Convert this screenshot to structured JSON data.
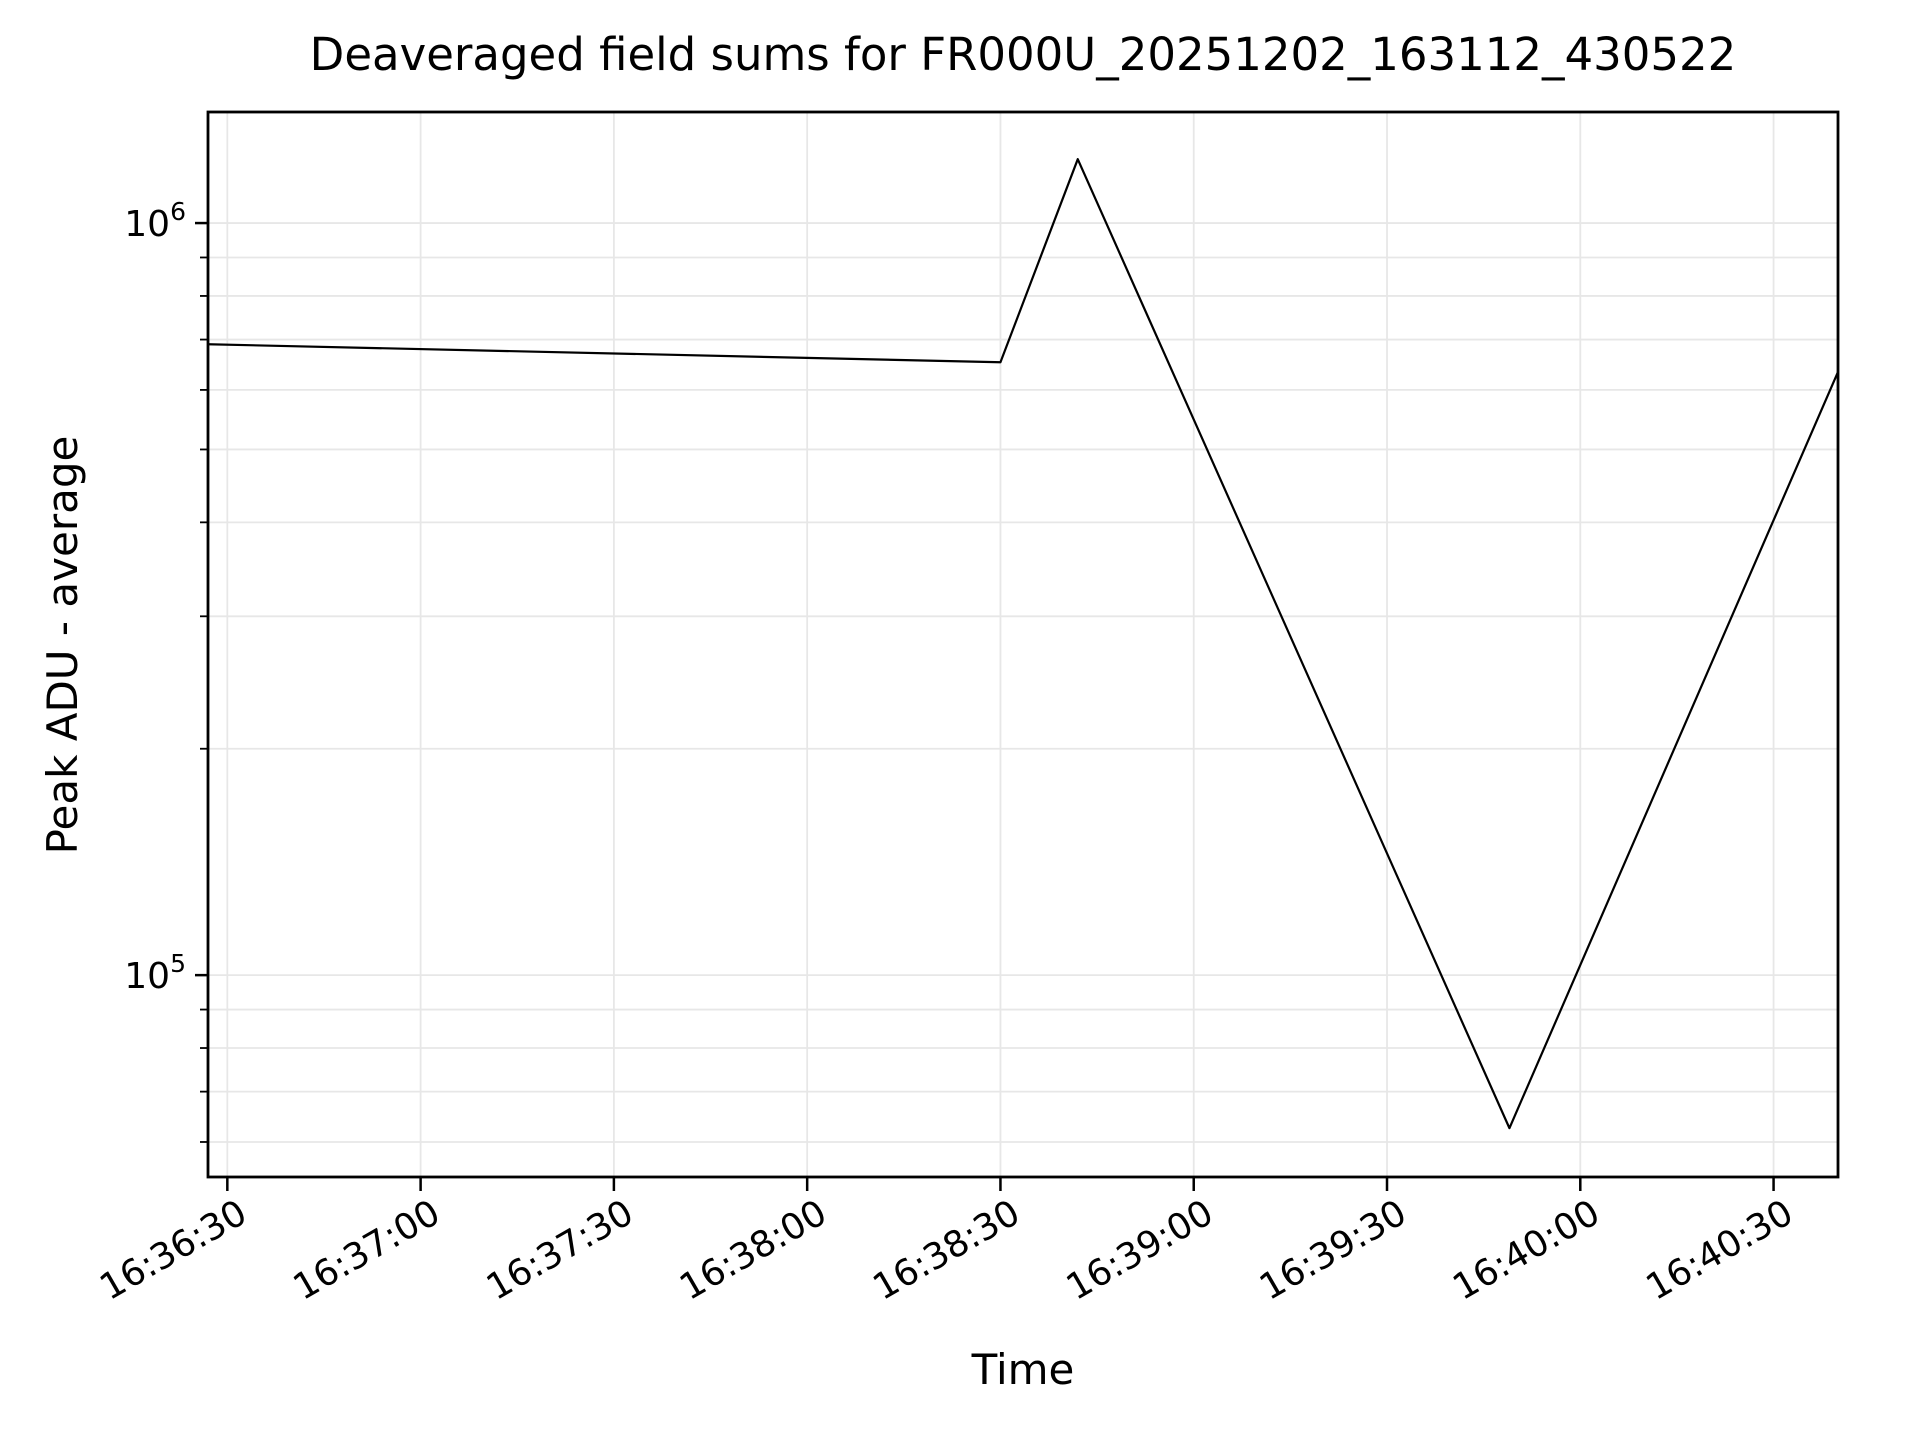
{
  "chart_data": {
    "type": "line",
    "title": "Deaveraged field sums for FR000U_20251202_163112_430522",
    "xlabel": "Time",
    "ylabel": "Peak ADU - average",
    "y_scale": "log",
    "x_tick_labels": [
      "16:36:30",
      "16:37:00",
      "16:37:30",
      "16:38:00",
      "16:38:30",
      "16:39:00",
      "16:39:30",
      "16:40:00",
      "16:40:30"
    ],
    "x_tick_rotation_deg": 30,
    "y_major_ticks": [
      {
        "value": 100000,
        "label_base": "10",
        "label_exponent": "5"
      },
      {
        "value": 1000000,
        "label_base": "10",
        "label_exponent": "6"
      }
    ],
    "y_minor_multiples": [
      2,
      3,
      4,
      5,
      6,
      7,
      8,
      9
    ],
    "xlim": [
      "16:36:27",
      "16:40:40"
    ],
    "ylim": [
      53900,
      1405000
    ],
    "grid": {
      "show": true,
      "color": "#e7e7e7"
    },
    "axes_color": "#000000",
    "text_color": "#000000",
    "legend": null,
    "series": [
      {
        "name": "Peak ADU - average",
        "color": "#000000",
        "x": [
          "16:36:27",
          "16:38:30",
          "16:38:42",
          "16:39:49",
          "16:40:40"
        ],
        "y": [
          690000,
          653000,
          1216000,
          62600,
          634000
        ]
      }
    ]
  }
}
